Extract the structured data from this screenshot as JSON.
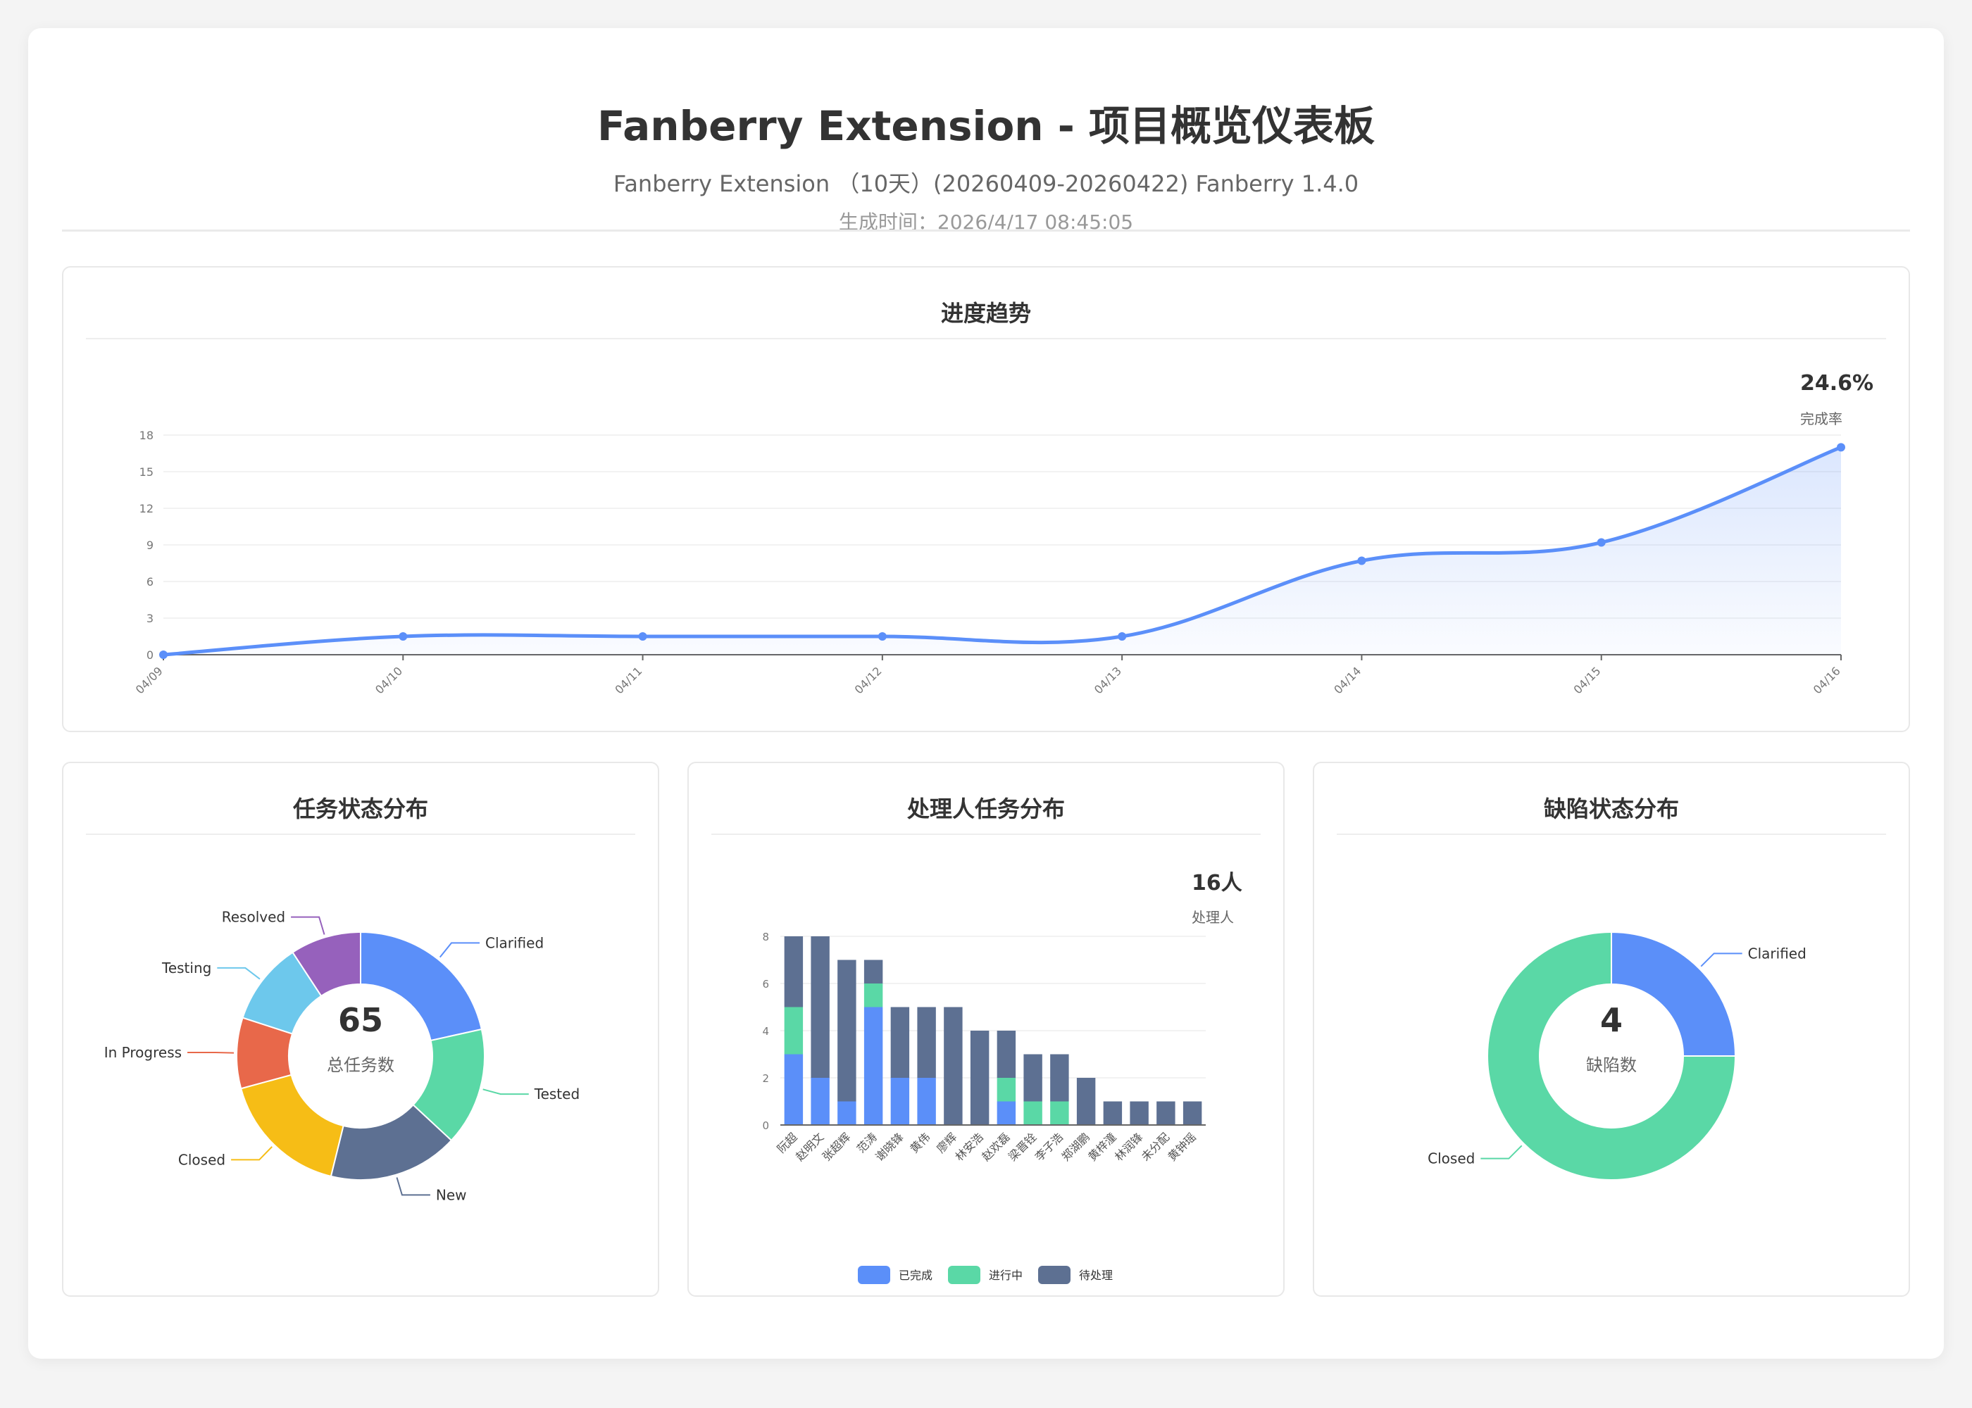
{
  "header": {
    "title": "Fanberry Extension - 项目概览仪表板",
    "subtitle": "Fanberry Extension （10天）(20260409-20260422) Fanberry 1.4.0",
    "generated": "生成时间：2026/4/17 08:45:05"
  },
  "progress": {
    "title": "进度趋势",
    "kpi_value": "24.6%",
    "kpi_label": "完成率"
  },
  "task_status": {
    "title": "任务状态分布",
    "center_value": "65",
    "center_label": "总任务数"
  },
  "assignee": {
    "title": "处理人任务分布",
    "kpi_value": "16人",
    "kpi_label": "处理人"
  },
  "defect": {
    "title": "缺陷状态分布",
    "center_value": "4",
    "center_label": "缺陷数"
  },
  "chart_data": [
    {
      "type": "area",
      "x": [
        "04/09",
        "04/10",
        "04/11",
        "04/12",
        "04/13",
        "04/14",
        "04/15",
        "04/16"
      ],
      "values": [
        0,
        1.5,
        1.5,
        1.5,
        1.5,
        7.7,
        9.2,
        17
      ],
      "ylim": [
        0,
        18
      ],
      "yticks": [
        0,
        3,
        6,
        9,
        12,
        15,
        18
      ],
      "grid": true,
      "color": "#5b8ff9"
    },
    {
      "type": "pie",
      "categories": [
        "Clarified",
        "Tested",
        "New",
        "Closed",
        "In Progress",
        "Testing",
        "Resolved"
      ],
      "values": [
        14,
        10,
        11,
        11,
        6,
        7,
        6
      ],
      "colors": [
        "#5b8ff9",
        "#5ad8a6",
        "#5d7092",
        "#f6bd16",
        "#e8684a",
        "#6dc8ec",
        "#9661bc"
      ]
    },
    {
      "type": "bar",
      "categories": [
        "阮超",
        "赵明文",
        "张超辉",
        "范涛",
        "谢晓锋",
        "黄伟",
        "廖辉",
        "林安浩",
        "赵欢磊",
        "梁晋铨",
        "李子浩",
        "郑湖鹏",
        "黄梓潼",
        "林润锋",
        "未分配",
        "黄钟瑶"
      ],
      "series": [
        {
          "name": "已完成",
          "values": [
            3,
            2,
            1,
            5,
            2,
            2,
            0,
            0,
            1,
            0,
            0,
            0,
            0,
            0,
            0,
            0
          ],
          "color": "#5b8ff9"
        },
        {
          "name": "进行中",
          "values": [
            2,
            0,
            0,
            1,
            0,
            0,
            0,
            0,
            1,
            1,
            1,
            0,
            0,
            0,
            0,
            0
          ],
          "color": "#5ad8a6"
        },
        {
          "name": "待处理",
          "values": [
            3,
            6,
            6,
            1,
            3,
            3,
            5,
            4,
            2,
            2,
            2,
            2,
            1,
            1,
            1,
            1
          ],
          "color": "#5d7092"
        }
      ],
      "ylim": [
        0,
        8
      ],
      "yticks": [
        0,
        2,
        4,
        6,
        8
      ],
      "legend": "bottom"
    },
    {
      "type": "pie",
      "categories": [
        "Clarified",
        "Closed"
      ],
      "values": [
        1,
        3
      ],
      "colors": [
        "#5b8ff9",
        "#5ad8a6"
      ]
    }
  ]
}
